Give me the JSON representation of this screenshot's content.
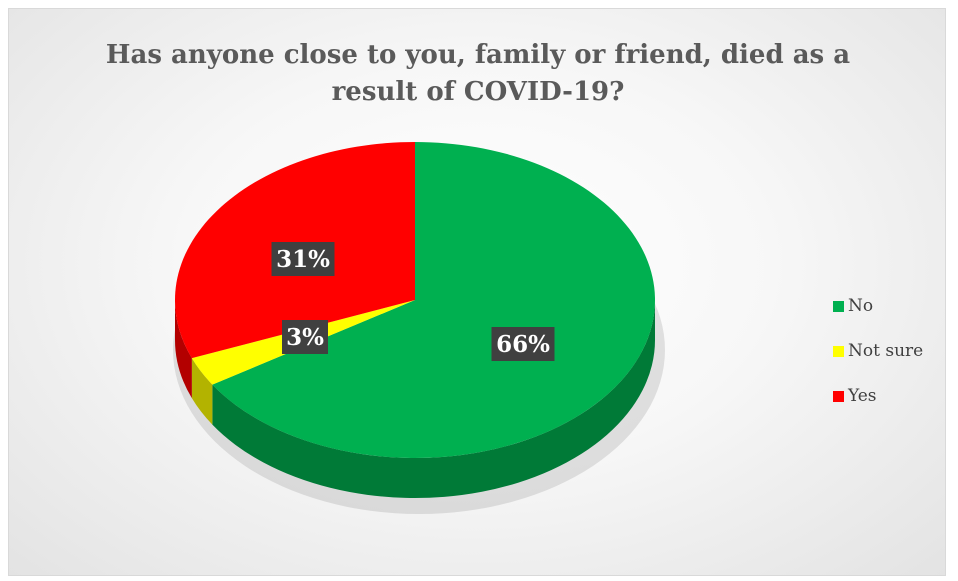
{
  "chart_data": {
    "type": "pie",
    "title_lines": [
      "Has anyone close to you, family or friend, died as a",
      "result of COVID-19?"
    ],
    "legend_position": "right",
    "slices": [
      {
        "name": "No",
        "value": 66,
        "label": "66%",
        "color": "#00b050",
        "side_color": "#007a37"
      },
      {
        "name": "Not sure",
        "value": 3,
        "label": "3%",
        "color": "#ffff00",
        "side_color": "#b3b300"
      },
      {
        "name": "Yes",
        "value": 31,
        "label": "31%",
        "color": "#ff0000",
        "side_color": "#b30000"
      }
    ]
  }
}
